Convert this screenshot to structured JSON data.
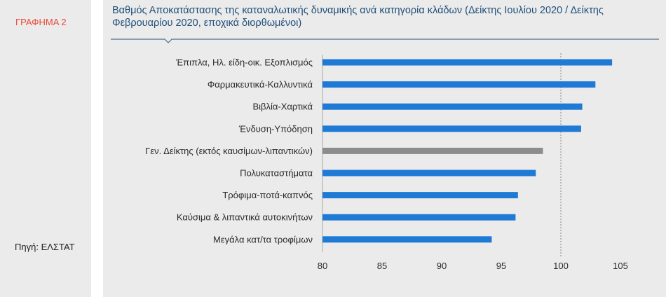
{
  "figure_label": "ΓΡΑΦΗΜΑ 2",
  "source": "Πηγή: ΕΛΣΤΑΤ",
  "chart_data": {
    "type": "bar",
    "orientation": "horizontal",
    "title": "Βαθμός Αποκατάστασης της καταναλωτικής δυναμικής  ανά κατηγορία κλάδων (Δείκτης Ιουλίου 2020 / Δείκτης Φεβρουαρίου 2020, εποχικά διορθωμένοι)",
    "categories": [
      "Έπιπλα, Ηλ. είδη-οικ. Εξοπλισμός",
      "Φαρμακευτικά-Καλλυντικά",
      "Βιβλία-Χαρτικά",
      "Ένδυση-Υπόδηση",
      "Γεν. Δείκτης (εκτός καυσίμων-λιπαντικών)",
      "Πολυκαταστήματα",
      "Τρόφιμα-ποτά-καπνός",
      "Καύσιμα & λιπαντικά αυτοκινήτων",
      "Μεγάλα  κατ/τα τροφίμων"
    ],
    "values": [
      104.3,
      102.9,
      101.8,
      101.7,
      98.5,
      97.9,
      96.4,
      96.2,
      94.2
    ],
    "highlight_index": 4,
    "xlim": [
      80,
      105
    ],
    "xticks": [
      "80",
      "85",
      "90",
      "95",
      "100",
      "105"
    ],
    "reference_line": 100,
    "colors": {
      "bar": "#1f7ad6",
      "highlight": "#8c8c8c",
      "reference": "#8a8a8a",
      "title": "#1f4e79",
      "label": "#e8493a"
    }
  }
}
